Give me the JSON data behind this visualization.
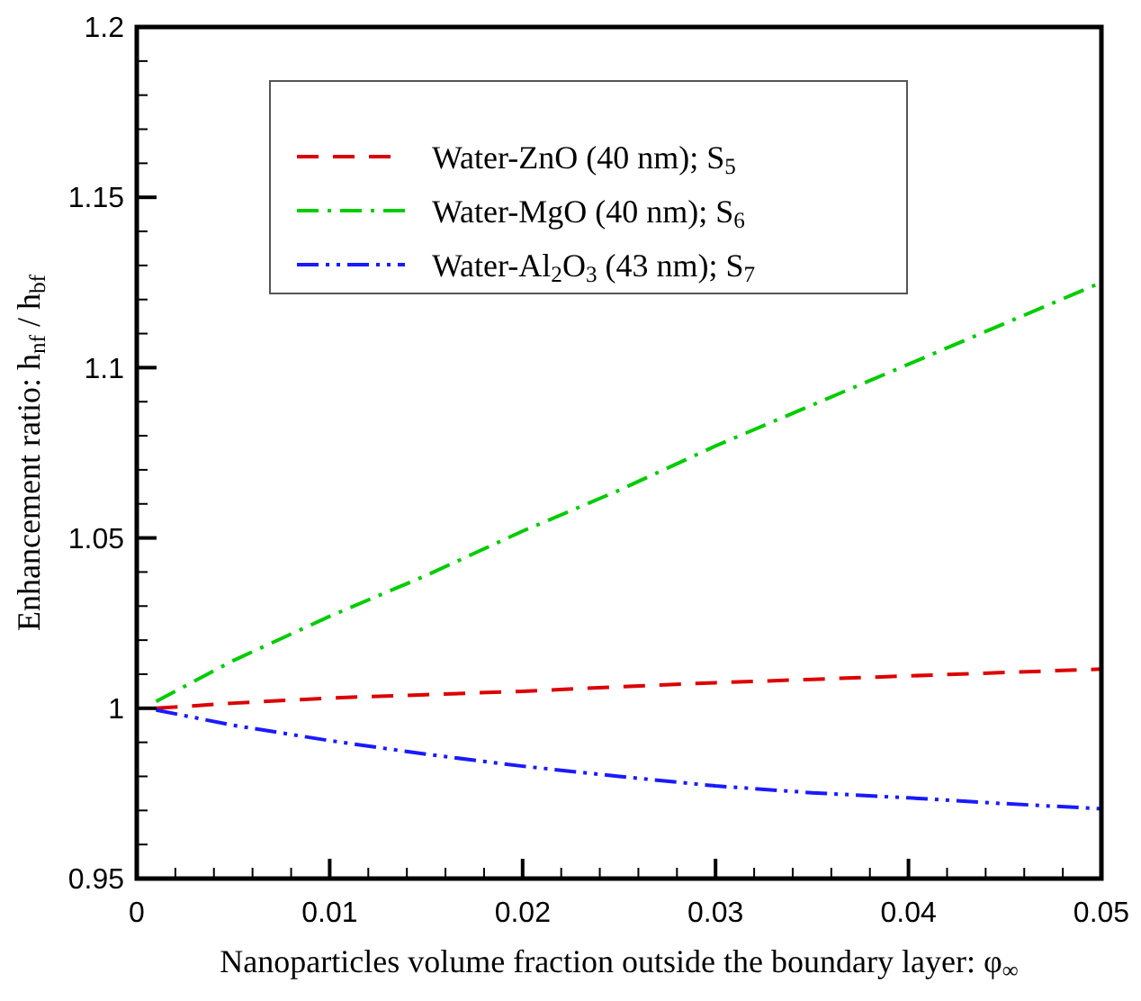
{
  "chart_data": {
    "type": "line",
    "xlabel": "Nanoparticles volume fraction outside the boundary layer: φ$_{∞}$",
    "ylabel": "Enhancement ratio: h$_{nf}$ / h$_{bf}$",
    "xlim": [
      0,
      0.05
    ],
    "ylim": [
      0.95,
      1.2
    ],
    "xticks": [
      0,
      {
        "value": 0.002,
        "label": null
      },
      {
        "value": 0.004,
        "label": null
      },
      {
        "value": 0.006,
        "label": null
      },
      {
        "value": 0.008,
        "label": null
      },
      0.01,
      {
        "value": 0.012,
        "label": null
      },
      {
        "value": 0.014,
        "label": null
      },
      {
        "value": 0.016,
        "label": null
      },
      {
        "value": 0.018,
        "label": null
      },
      0.02,
      {
        "value": 0.022,
        "label": null
      },
      {
        "value": 0.024,
        "label": null
      },
      {
        "value": 0.026,
        "label": null
      },
      {
        "value": 0.028,
        "label": null
      },
      0.03,
      {
        "value": 0.032,
        "label": null
      },
      {
        "value": 0.034,
        "label": null
      },
      {
        "value": 0.036,
        "label": null
      },
      {
        "value": 0.038,
        "label": null
      },
      0.04,
      {
        "value": 0.042,
        "label": null
      },
      {
        "value": 0.044,
        "label": null
      },
      {
        "value": 0.046,
        "label": null
      },
      {
        "value": 0.048,
        "label": null
      },
      0.05
    ],
    "yticks": [
      0.95,
      {
        "value": 0.96,
        "label": null
      },
      {
        "value": 0.97,
        "label": null
      },
      {
        "value": 0.98,
        "label": null
      },
      {
        "value": 0.99,
        "label": null
      },
      1,
      {
        "value": 1.01,
        "label": null
      },
      {
        "value": 1.02,
        "label": null
      },
      {
        "value": 1.03,
        "label": null
      },
      {
        "value": 1.04,
        "label": null
      },
      1.05,
      {
        "value": 1.06,
        "label": null
      },
      {
        "value": 1.07,
        "label": null
      },
      {
        "value": 1.08,
        "label": null
      },
      {
        "value": 1.09,
        "label": null
      },
      1.1,
      {
        "value": 1.11,
        "label": null
      },
      {
        "value": 1.12,
        "label": null
      },
      {
        "value": 1.13,
        "label": null
      },
      {
        "value": 1.14,
        "label": null
      },
      1.15,
      {
        "value": 1.16,
        "label": null
      },
      {
        "value": 1.17,
        "label": null
      },
      {
        "value": 1.18,
        "label": null
      },
      {
        "value": 1.19,
        "label": null
      },
      1.2
    ],
    "x": [
      0.001,
      0.005,
      0.01,
      0.015,
      0.02,
      0.025,
      0.03,
      0.035,
      0.04,
      0.045,
      0.05
    ],
    "series": [
      {
        "name": "Water-ZnO (40 nm); S$_{5}$",
        "color": "#dd0000",
        "line_style": "dashed",
        "values": [
          1.0,
          1.0015,
          1.003,
          1.004,
          1.005,
          1.0063,
          1.0075,
          1.0085,
          1.0095,
          1.0105,
          1.0115
        ]
      },
      {
        "name": "Water-MgO (40 nm); S$_{6}$",
        "color": "#00cc00",
        "line_style": "dashdot",
        "values": [
          1.002,
          1.014,
          1.027,
          1.039,
          1.052,
          1.064,
          1.077,
          1.089,
          1.101,
          1.113,
          1.125
        ]
      },
      {
        "name": "Water-Al$_{2}$O$_{3}$ (43 nm); S$_{7}$",
        "color": "#1a1aff",
        "line_style": "dashdotdot",
        "values": [
          0.9995,
          0.995,
          0.9905,
          0.9865,
          0.983,
          0.98,
          0.9772,
          0.9752,
          0.9737,
          0.972,
          0.9705
        ]
      }
    ],
    "legend": "top left",
    "grid": false
  }
}
